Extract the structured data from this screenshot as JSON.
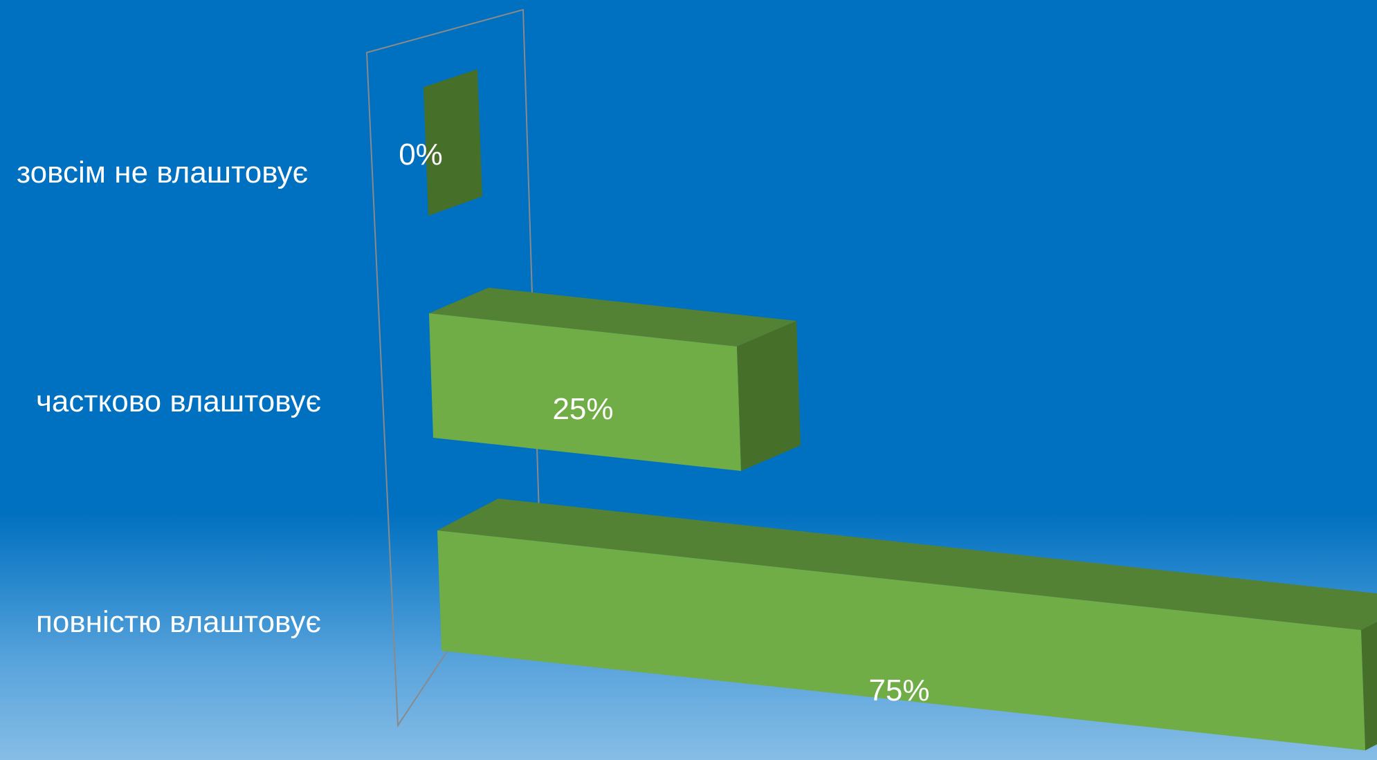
{
  "chart_data": {
    "type": "bar",
    "orientation": "horizontal",
    "three_d": true,
    "categories": [
      "зовсім не влаштовує",
      "частково влаштовує",
      "повністю влаштовує"
    ],
    "values": [
      0,
      25,
      75
    ],
    "value_labels": [
      "0%",
      "25%",
      "75%"
    ],
    "unit": "%",
    "title": "",
    "xlabel": "",
    "ylabel": "",
    "xlim": [
      0,
      75
    ],
    "grid": false,
    "legend": "none",
    "colors": {
      "bar_front": "#70ad47",
      "bar_top": "#548235",
      "bar_side": "#46702a",
      "wall_stroke": "#8a8a8a",
      "text": "#ffffff",
      "background_top": "#0070c0",
      "background_bottom": "#86bde6"
    }
  }
}
